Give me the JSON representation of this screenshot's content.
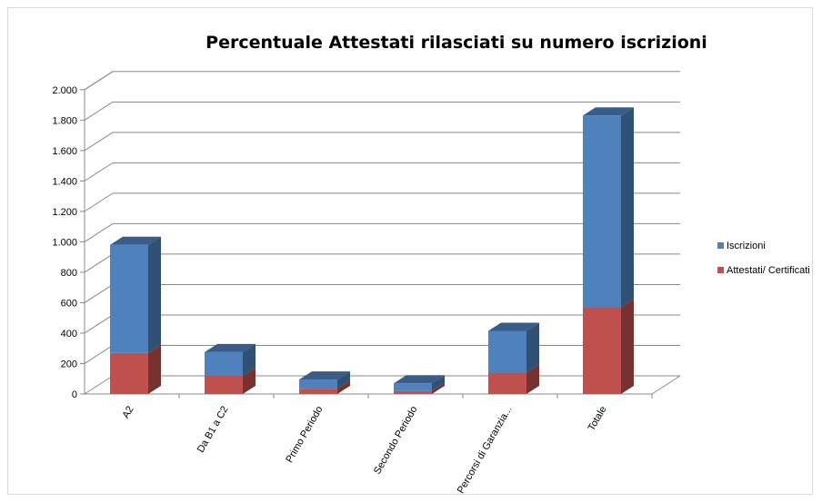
{
  "chart_data": {
    "type": "bar",
    "stacked": true,
    "three_d": true,
    "title": "Percentuale Attestati rilasciati su numero iscrizioni",
    "categories": [
      "A2",
      "Da B1 a C2",
      "Primo Periodo",
      "Secondo Periodo",
      "Percorsi di Garanzia...",
      "Totale"
    ],
    "series": [
      {
        "name": "Attestati/ Certificati",
        "color": "#c0504d",
        "values": [
          270,
          120,
          35,
          20,
          140,
          570
        ]
      },
      {
        "name": "Iscrizioni",
        "color": "#4f81bd",
        "values": [
          710,
          155,
          60,
          50,
          275,
          1260
        ]
      }
    ],
    "ylim": [
      0,
      2000
    ],
    "yticks": [
      0,
      200,
      400,
      600,
      800,
      1000,
      1200,
      1400,
      1600,
      1800,
      2000
    ],
    "ytick_labels": [
      "0",
      "200",
      "400",
      "600",
      "800",
      "1.000",
      "1.200",
      "1.400",
      "1.600",
      "1.800",
      "2.000"
    ],
    "grid": true,
    "legend_position": "right",
    "legend": [
      "Iscrizioni",
      "Attestati/ Certificati"
    ]
  }
}
